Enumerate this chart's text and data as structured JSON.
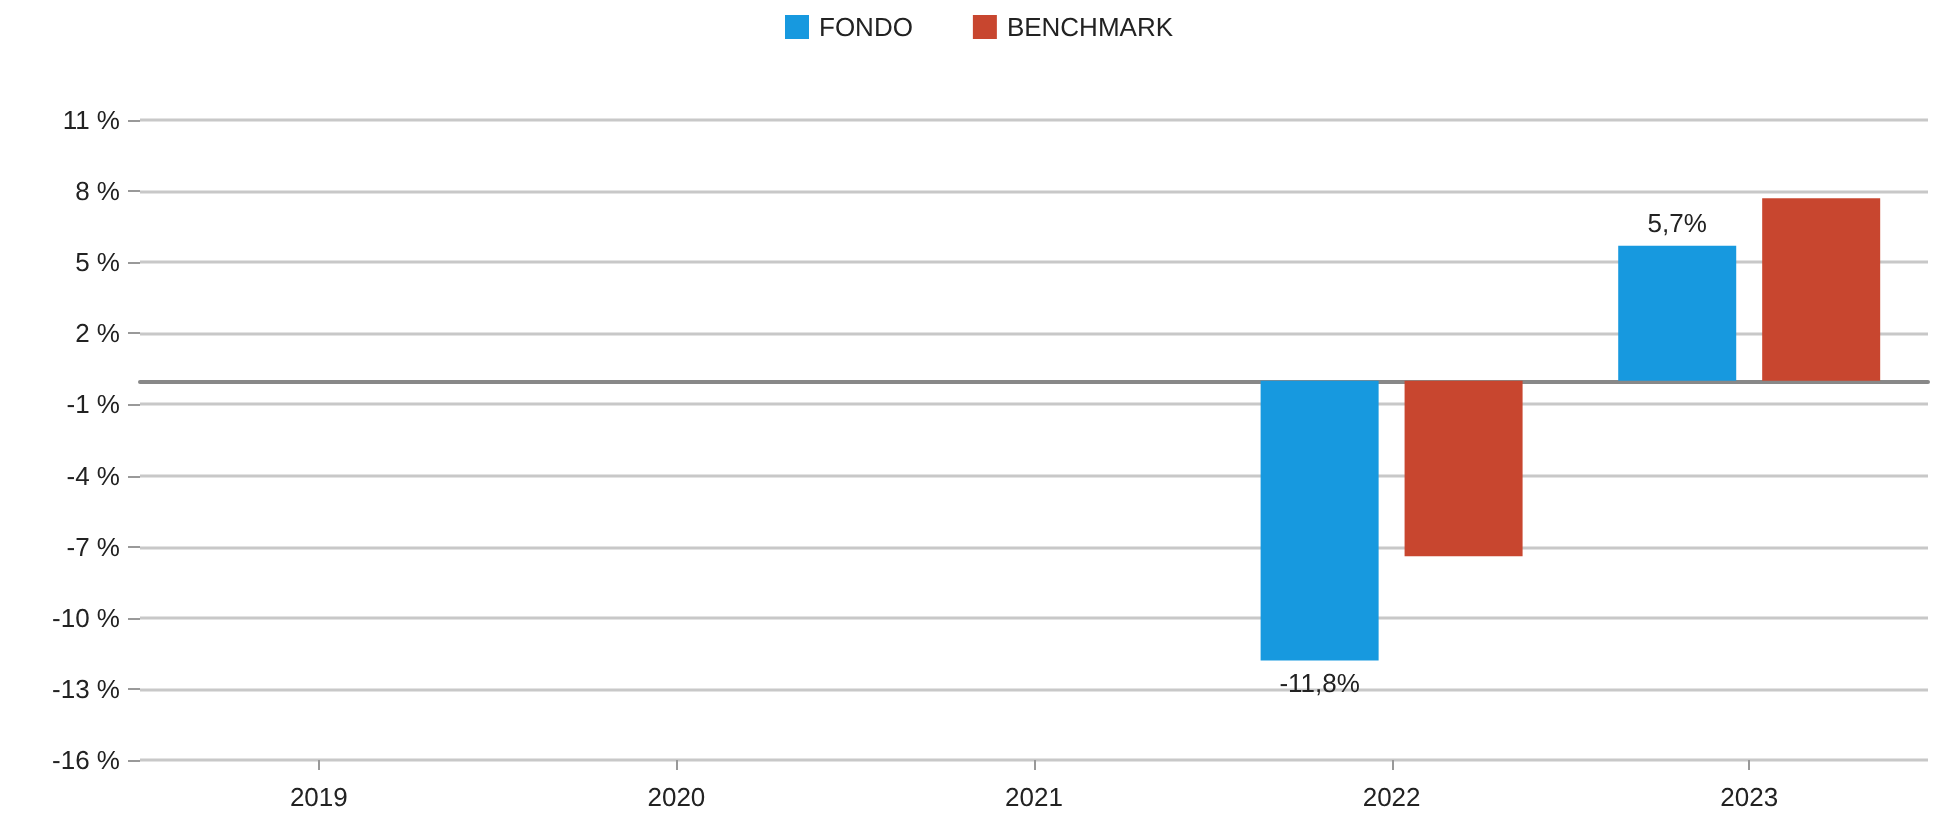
{
  "chart_data": {
    "type": "bar",
    "categories": [
      "2019",
      "2020",
      "2021",
      "2022",
      "2023"
    ],
    "series": [
      {
        "name": "FONDO",
        "color": "#1799df",
        "values": [
          null,
          null,
          null,
          -11.8,
          5.7
        ],
        "value_labels": [
          null,
          null,
          null,
          "-11,8%",
          "5,7%"
        ]
      },
      {
        "name": "BENCHMARK",
        "color": "#c8462f",
        "values": [
          null,
          null,
          null,
          -7.4,
          7.7
        ]
      }
    ],
    "ylim": [
      -16,
      11
    ],
    "yticks": [
      {
        "value": -16,
        "label": "-16 %"
      },
      {
        "value": -13,
        "label": "-13 %"
      },
      {
        "value": -10,
        "label": "-10 %"
      },
      {
        "value": -7,
        "label": "-7 %"
      },
      {
        "value": -4,
        "label": "-4 %"
      },
      {
        "value": -1,
        "label": "-1 %"
      },
      {
        "value": 2,
        "label": "2 %"
      },
      {
        "value": 5,
        "label": "5 %"
      },
      {
        "value": 8,
        "label": "8 %"
      },
      {
        "value": 11,
        "label": "11 %"
      }
    ],
    "grid": "y",
    "legend": "top"
  }
}
